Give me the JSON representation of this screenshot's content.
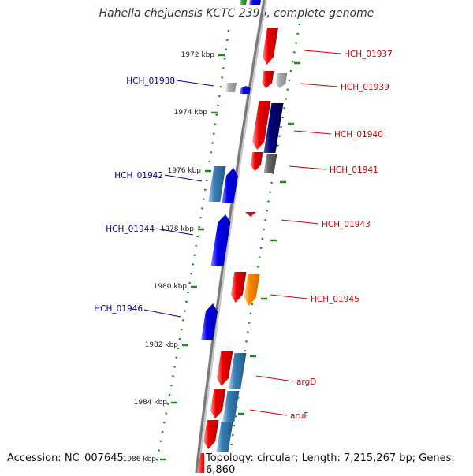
{
  "title": "Hahella chejuensis KCTC 2396, complete genome",
  "footer": {
    "accession": "Accession: NC_007645",
    "summary": "Topology: circular; Length: 7,215,267 bp; Genes: 6,860"
  },
  "colors": {
    "backbone": "#808080",
    "tick": "#1a8a1a",
    "forward_label": "#cc0000",
    "reverse_label": "#000099",
    "red": "#ee0000",
    "blue": "#0000ee",
    "steel": "#3a7fb5",
    "navy": "#000077",
    "gray": "#666666",
    "light_gray": "#aaaaaa",
    "orange": "#ff8800",
    "cyan": "#00cccc",
    "green": "#33aa33"
  },
  "scale_labels": [
    "1972 kbp",
    "1974 kbp",
    "1976 kbp",
    "1978 kbp",
    "1980 kbp",
    "1982 kbp",
    "1984 kbp",
    "1986 kbp"
  ],
  "genes": [
    {
      "label": "HCH_01937",
      "strand": "forward",
      "color": "red"
    },
    {
      "label": "HCH_01938",
      "strand": "reverse",
      "color": "blue"
    },
    {
      "label": "HCH_01939",
      "strand": "forward",
      "color": "red"
    },
    {
      "label": "HCH_01940",
      "strand": "forward",
      "color": "red"
    },
    {
      "label": "HCH_01941",
      "strand": "forward",
      "color": "red"
    },
    {
      "label": "HCH_01942",
      "strand": "reverse",
      "color": "blue"
    },
    {
      "label": "HCH_01943",
      "strand": "forward",
      "color": "red"
    },
    {
      "label": "HCH_01944",
      "strand": "reverse",
      "color": "blue"
    },
    {
      "label": "HCH_01945",
      "strand": "forward",
      "color": "red"
    },
    {
      "label": "HCH_01946",
      "strand": "reverse",
      "color": "blue"
    },
    {
      "label": "argD",
      "strand": "forward",
      "color": "red"
    },
    {
      "label": "aruF",
      "strand": "forward",
      "color": "red"
    }
  ]
}
